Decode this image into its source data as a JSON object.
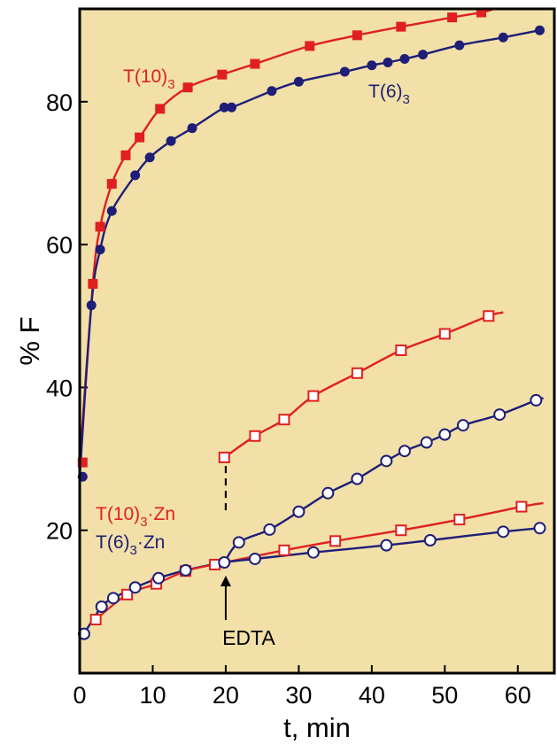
{
  "chart_data": {
    "type": "line",
    "xlabel": "t, min",
    "ylabel": "% F",
    "xlim": [
      0,
      65
    ],
    "ylim": [
      0,
      93
    ],
    "x_ticks": [
      "0",
      "10",
      "20",
      "30",
      "40",
      "50",
      "60"
    ],
    "y_ticks": [
      "20",
      "40",
      "60",
      "80"
    ],
    "grid": false,
    "background": "#f2e0a8",
    "annotation": {
      "text": "EDTA",
      "x": 20,
      "y_from": 30,
      "y_to": 15.5
    },
    "series": [
      {
        "name": "T(10)3",
        "label_main": "T(10)",
        "label_sub": "3",
        "color": "#e02020",
        "marker": "square-filled",
        "x": [
          0.4,
          1.8,
          2.8,
          4.4,
          6.3,
          8.2,
          11.0,
          14.8,
          19.5,
          24.0,
          31.5,
          38.0,
          44.0,
          51.0,
          55.0
        ],
        "y": [
          29.5,
          54.5,
          62.5,
          68.5,
          72.5,
          75.0,
          79.0,
          82.0,
          83.8,
          85.3,
          87.8,
          89.3,
          90.5,
          91.8,
          92.5
        ]
      },
      {
        "name": "T(6)3",
        "label_main": "T(6)",
        "label_sub": "3",
        "color": "#1e1e78",
        "marker": "circle-filled",
        "x": [
          0.4,
          1.6,
          2.8,
          4.4,
          7.6,
          9.6,
          12.5,
          15.4,
          19.8,
          20.8,
          26.3,
          30.0,
          36.3,
          40.0,
          42.2,
          44.5,
          47.0,
          52.0,
          58.0,
          63.0
        ],
        "y": [
          27.5,
          51.5,
          59.3,
          64.7,
          69.7,
          72.2,
          74.5,
          76.3,
          79.2,
          79.2,
          81.5,
          82.8,
          84.2,
          85.1,
          85.5,
          86.0,
          86.6,
          87.9,
          89.0,
          90.0
        ],
        "label_extra": ""
      },
      {
        "name": "T(10)3·Zn",
        "label_main": "T(10)",
        "label_sub": "3",
        "label_tail": "·Zn",
        "color": "#e02020",
        "marker": "square-open",
        "x": [
          2.2,
          6.5,
          10.5,
          14.5,
          18.5,
          28.0,
          35.0,
          44.0,
          52.0,
          60.5
        ],
        "y": [
          7.5,
          11.0,
          12.5,
          14.3,
          15.2,
          17.2,
          18.5,
          20.0,
          21.5,
          23.3
        ]
      },
      {
        "name": "T(6)3·Zn",
        "label_main": "T(6)",
        "label_sub": "3",
        "label_tail": "·Zn",
        "color": "#1e1e78",
        "marker": "circle-open",
        "x": [
          0.6,
          3.0,
          4.6,
          7.6,
          10.8,
          14.5,
          19.8,
          24.0,
          32.0,
          42.0,
          48.0,
          58.0,
          63.0
        ],
        "y": [
          5.5,
          9.3,
          10.5,
          12.0,
          13.3,
          14.4,
          15.5,
          16.0,
          16.9,
          17.9,
          18.6,
          19.8,
          20.3
        ]
      },
      {
        "name": "T(10)3·Zn after EDTA",
        "color": "#e02020",
        "marker": "square-open",
        "x": [
          19.8,
          24.0,
          28.0,
          32.0,
          38.0,
          44.0,
          50.0,
          56.0
        ],
        "y": [
          30.2,
          33.2,
          35.5,
          38.8,
          42.0,
          45.2,
          47.5,
          50.0
        ]
      },
      {
        "name": "T(6)3·Zn after EDTA",
        "color": "#1e1e78",
        "marker": "circle-open",
        "x": [
          21.8,
          26.0,
          30.0,
          34.0,
          38.0,
          42.0,
          44.5,
          47.5,
          50.0,
          52.5,
          57.5,
          62.5
        ],
        "y": [
          18.3,
          20.1,
          22.6,
          25.2,
          27.2,
          29.7,
          31.1,
          32.3,
          33.4,
          34.7,
          36.2,
          38.2
        ]
      }
    ]
  }
}
